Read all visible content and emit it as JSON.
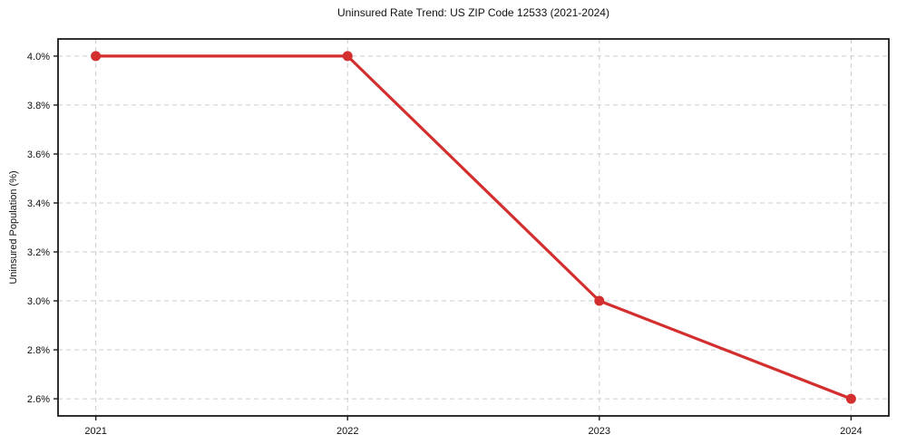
{
  "chart_data": {
    "type": "line",
    "title": "Uninsured Rate Trend: US ZIP Code 12533 (2021-2024)",
    "xlabel": "",
    "ylabel": "Uninsured Population (%)",
    "x": [
      2021,
      2022,
      2023,
      2024
    ],
    "x_tick_labels": [
      "2021",
      "2022",
      "2023",
      "2024"
    ],
    "values": [
      4.0,
      4.0,
      3.0,
      2.6
    ],
    "y_ticks": [
      {
        "value": 4.0,
        "label": "4.0%"
      },
      {
        "value": 3.8,
        "label": "3.8%"
      },
      {
        "value": 3.6,
        "label": "3.6%"
      },
      {
        "value": 3.4,
        "label": "3.4%"
      },
      {
        "value": 3.2,
        "label": "3.2%"
      },
      {
        "value": 3.0,
        "label": "3.0%"
      },
      {
        "value": 2.8,
        "label": "2.8%"
      },
      {
        "value": 2.6,
        "label": "2.6%"
      }
    ],
    "xlim": [
      2020.85,
      2024.15
    ],
    "ylim": [
      2.53,
      4.07
    ],
    "grid": true,
    "grid_style": "dashed",
    "legend": "none",
    "marker": "circle",
    "colors": {
      "line": "#d32f2f",
      "marker": "#d32f2f",
      "grid": "#cdcdcd",
      "spine": "#1a1a1a",
      "text": "#111111"
    }
  }
}
